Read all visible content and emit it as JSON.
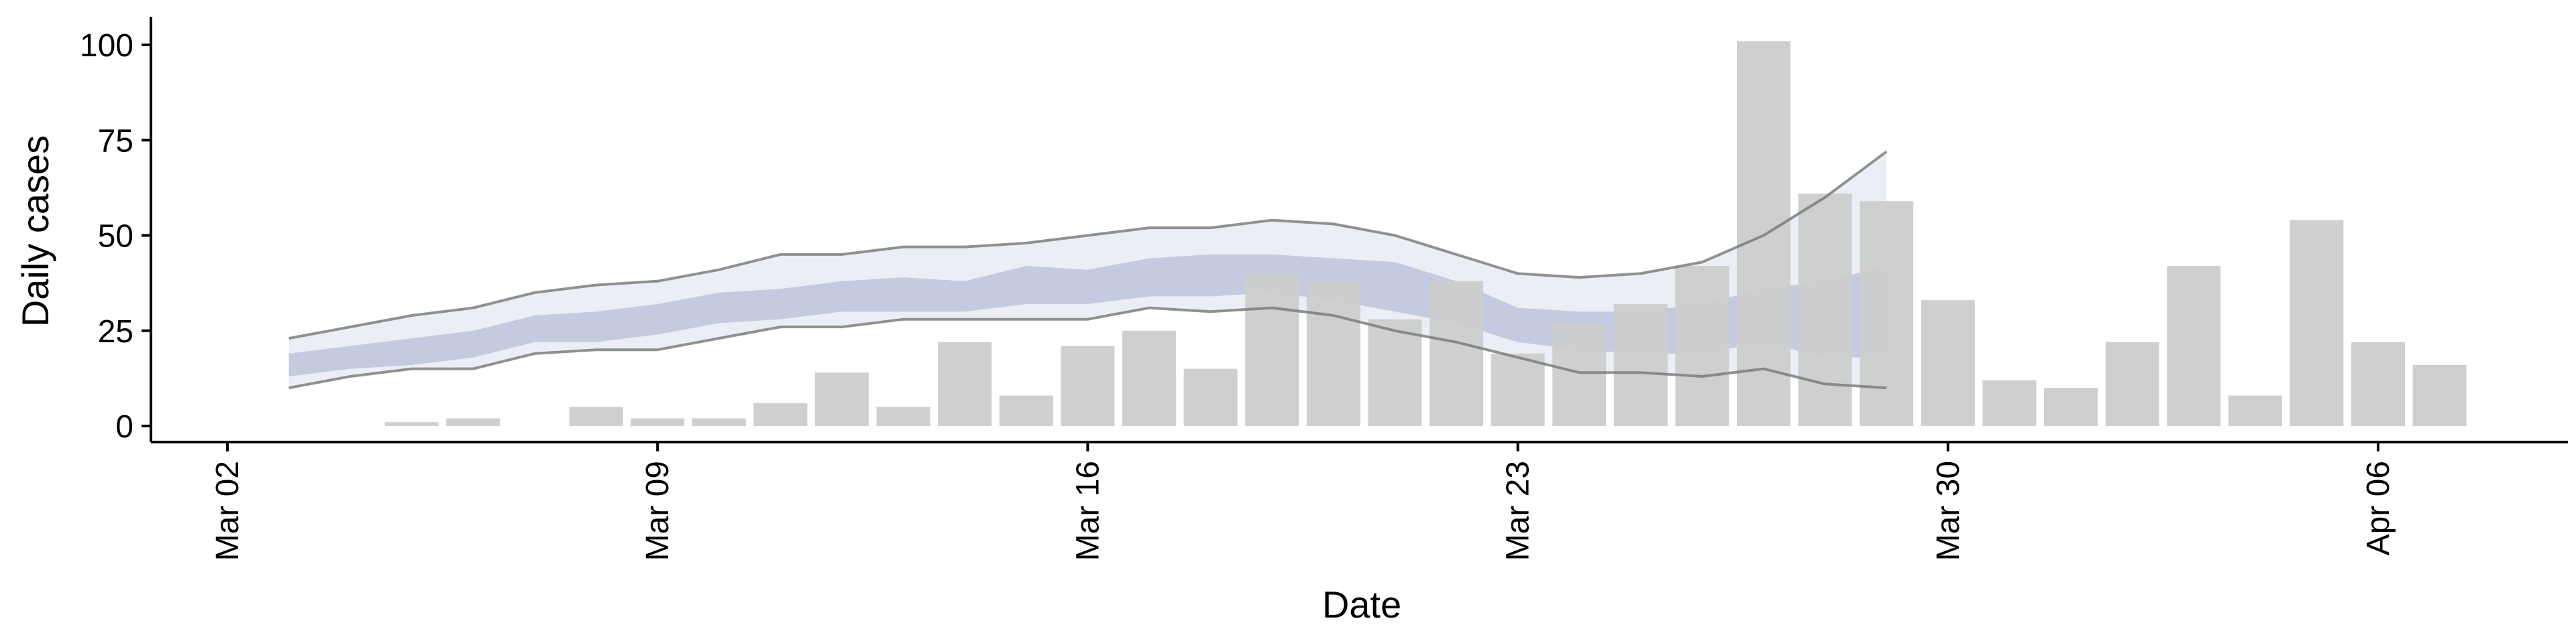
{
  "chart_data": {
    "type": "bar",
    "xlabel": "Date",
    "ylabel": "Daily cases",
    "ylim": [
      0,
      105
    ],
    "xlim": [
      "2020-03-02",
      "2020-04-08"
    ],
    "yticks": [
      0,
      25,
      50,
      75,
      100
    ],
    "xticks": [
      {
        "date": "2020-03-02",
        "label": "Mar 02"
      },
      {
        "date": "2020-03-09",
        "label": "Mar 09"
      },
      {
        "date": "2020-03-16",
        "label": "Mar 16"
      },
      {
        "date": "2020-03-23",
        "label": "Mar 23"
      },
      {
        "date": "2020-03-30",
        "label": "Mar 30"
      },
      {
        "date": "2020-04-06",
        "label": "Apr 06"
      }
    ],
    "grid": false,
    "bar_color": "#cccccc",
    "band_outer_color": "#e6e8f2",
    "band_inner_color": "#b3bbd6",
    "line_color": "#777777",
    "bars": {
      "dates": [
        "2020-03-05",
        "2020-03-06",
        "2020-03-08",
        "2020-03-09",
        "2020-03-10",
        "2020-03-11",
        "2020-03-12",
        "2020-03-13",
        "2020-03-14",
        "2020-03-15",
        "2020-03-16",
        "2020-03-17",
        "2020-03-18",
        "2020-03-19",
        "2020-03-20",
        "2020-03-21",
        "2020-03-22",
        "2020-03-23",
        "2020-03-24",
        "2020-03-25",
        "2020-03-26",
        "2020-03-27",
        "2020-03-28",
        "2020-03-29",
        "2020-03-30",
        "2020-03-31",
        "2020-04-01",
        "2020-04-02",
        "2020-04-03",
        "2020-04-04",
        "2020-04-05",
        "2020-04-06",
        "2020-04-07"
      ],
      "values": [
        1,
        2,
        5,
        2,
        2,
        6,
        14,
        5,
        22,
        8,
        21,
        25,
        15,
        40,
        38,
        28,
        38,
        19,
        27,
        32,
        42,
        101,
        61,
        59,
        33,
        12,
        10,
        22,
        42,
        8,
        54,
        22,
        16
      ]
    },
    "estimate": {
      "dates": [
        "2020-03-03",
        "2020-03-04",
        "2020-03-05",
        "2020-03-06",
        "2020-03-07",
        "2020-03-08",
        "2020-03-09",
        "2020-03-10",
        "2020-03-11",
        "2020-03-12",
        "2020-03-13",
        "2020-03-14",
        "2020-03-15",
        "2020-03-16",
        "2020-03-17",
        "2020-03-18",
        "2020-03-19",
        "2020-03-20",
        "2020-03-21",
        "2020-03-22",
        "2020-03-23",
        "2020-03-24",
        "2020-03-25",
        "2020-03-26",
        "2020-03-27",
        "2020-03-28",
        "2020-03-29"
      ],
      "outer_upper": [
        23,
        26,
        29,
        31,
        35,
        37,
        38,
        41,
        45,
        45,
        47,
        47,
        48,
        50,
        52,
        52,
        54,
        53,
        50,
        45,
        40,
        39,
        40,
        43,
        50,
        60,
        72
      ],
      "outer_lower": [
        10,
        13,
        15,
        15,
        19,
        20,
        20,
        23,
        26,
        26,
        28,
        28,
        28,
        28,
        31,
        30,
        31,
        29,
        25,
        22,
        18,
        14,
        14,
        13,
        15,
        11,
        10
      ],
      "inner_upper": [
        19,
        21,
        23,
        25,
        29,
        30,
        32,
        35,
        36,
        38,
        39,
        38,
        42,
        41,
        44,
        45,
        45,
        44,
        43,
        38,
        31,
        30,
        30,
        32,
        36,
        38,
        42
      ],
      "inner_lower": [
        13,
        15,
        16,
        18,
        22,
        22,
        24,
        27,
        28,
        30,
        30,
        30,
        32,
        32,
        34,
        34,
        35,
        33,
        30,
        27,
        22,
        20,
        19,
        19,
        22,
        18,
        18
      ]
    }
  }
}
